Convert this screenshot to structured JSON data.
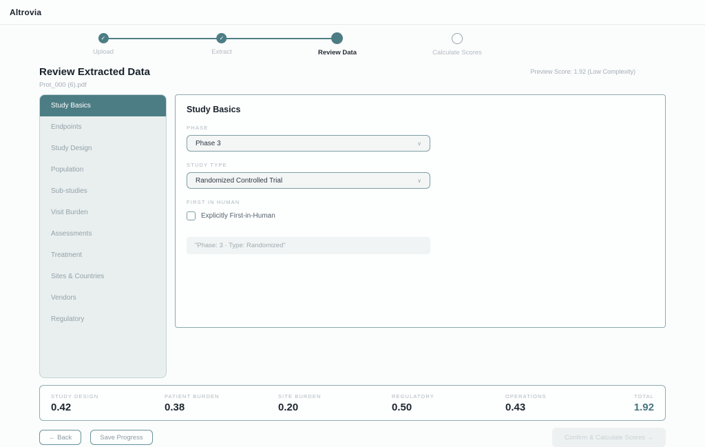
{
  "topbar": {
    "brand": "Altrovia"
  },
  "stepper": {
    "steps": [
      {
        "label": "Upload",
        "state": "complete"
      },
      {
        "label": "Extract",
        "state": "complete"
      },
      {
        "label": "Review Data",
        "state": "current"
      },
      {
        "label": "Calculate Scores",
        "state": "upcoming"
      }
    ],
    "check_glyph": "✓"
  },
  "header": {
    "title": "Review Extracted Data",
    "subtitle": "Prot_000 (6).pdf",
    "preview_score": "Preview Score: 1.92 (Low Complexity)"
  },
  "sidebar": {
    "selected": "Study Basics",
    "items": [
      {
        "label": "Study Basics"
      },
      {
        "label": "Endpoints"
      },
      {
        "label": "Study Design"
      },
      {
        "label": "Population"
      },
      {
        "label": "Sub-studies"
      },
      {
        "label": "Visit Burden"
      },
      {
        "label": "Assessments"
      },
      {
        "label": "Treatment"
      },
      {
        "label": "Sites & Countries"
      },
      {
        "label": "Vendors"
      },
      {
        "label": "Regulatory"
      }
    ]
  },
  "panel": {
    "title": "Study Basics",
    "phase": {
      "label": "PHASE",
      "value": "Phase 3",
      "chevron": "∨"
    },
    "study_type": {
      "label": "STUDY TYPE",
      "value": "Randomized Controlled Trial",
      "chevron": "∨"
    },
    "first_in_human": {
      "label": "FIRST IN HUMAN",
      "checkbox_label": "Explicitly First-in-Human",
      "checked": false
    },
    "summary_quote": "\"Phase: 3 · Type: Randomized\""
  },
  "scores": {
    "items": [
      {
        "label": "STUDY DESIGN",
        "value": "0.42"
      },
      {
        "label": "PATIENT BURDEN",
        "value": "0.38"
      },
      {
        "label": "SITE BURDEN",
        "value": "0.20"
      },
      {
        "label": "REGULATORY",
        "value": "0.50"
      },
      {
        "label": "OPERATIONS",
        "value": "0.43"
      }
    ],
    "total": {
      "label": "TOTAL",
      "value": "1.92"
    }
  },
  "footer": {
    "back_label": "← Back",
    "save_label": "Save Progress",
    "confirm_label": "Confirm & Calculate Scores →"
  },
  "colors": {
    "accent_teal": "#4d7d84",
    "total_teal": "#45767e",
    "sidebar_bg": "#e9efef",
    "panel_border": "#8fa9ae"
  }
}
